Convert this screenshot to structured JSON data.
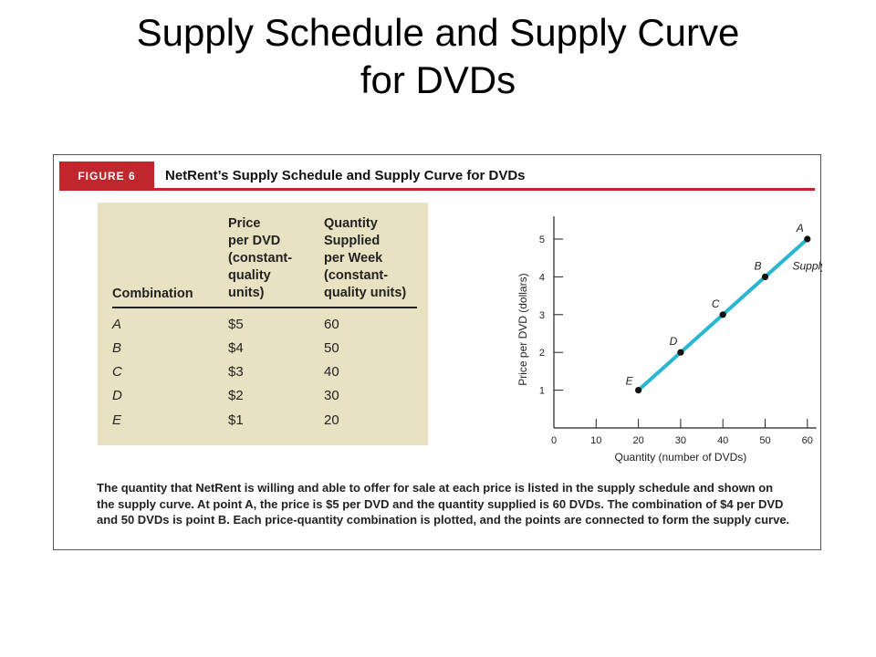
{
  "slide": {
    "title_line1": "Supply Schedule and Supply Curve",
    "title_line2": "for DVDs"
  },
  "figure": {
    "tag": "FIGURE 6",
    "title": "NetRent’s Supply Schedule and Supply Curve for DVDs",
    "caption": "The quantity that NetRent is willing and able to offer for sale at each price is listed in the supply schedule and shown on the supply curve. At point A, the price is $5 per DVD and the quantity supplied is 60 DVDs. The combination of $4 per DVD and 50 DVDs is point B. Each price-quantity combination is plotted, and the points are connected to form the supply curve."
  },
  "table": {
    "headers": [
      [
        "Combination"
      ],
      [
        "Price",
        "per DVD",
        "(constant-",
        "quality",
        "units)"
      ],
      [
        "Quantity",
        "Supplied",
        "per Week",
        "(constant-",
        "quality units)"
      ]
    ],
    "rows": [
      [
        "A",
        "$5",
        "60"
      ],
      [
        "B",
        "$4",
        "50"
      ],
      [
        "C",
        "$3",
        "40"
      ],
      [
        "D",
        "$2",
        "30"
      ],
      [
        "E",
        "$1",
        "20"
      ]
    ]
  },
  "chart_data": {
    "type": "line",
    "xlabel": "Quantity (number of DVDs)",
    "ylabel": "Price per DVD (dollars)",
    "xlim": [
      0,
      60
    ],
    "ylim": [
      0,
      5.6
    ],
    "x_ticks": [
      "0",
      "10",
      "20",
      "30",
      "40",
      "50",
      "60"
    ],
    "y_ticks": [
      "1",
      "2",
      "3",
      "4",
      "5"
    ],
    "series": [
      {
        "name": "Supply",
        "color": "#29b6d0",
        "points": [
          {
            "label": "E",
            "x": 20,
            "y": 1
          },
          {
            "label": "D",
            "x": 30,
            "y": 2
          },
          {
            "label": "C",
            "x": 40,
            "y": 3
          },
          {
            "label": "B",
            "x": 50,
            "y": 4
          },
          {
            "label": "A",
            "x": 60,
            "y": 5
          }
        ]
      }
    ],
    "grid": false,
    "colors": {
      "figure_accent": "#c0272d",
      "table_background": "#e9e2c2"
    }
  }
}
